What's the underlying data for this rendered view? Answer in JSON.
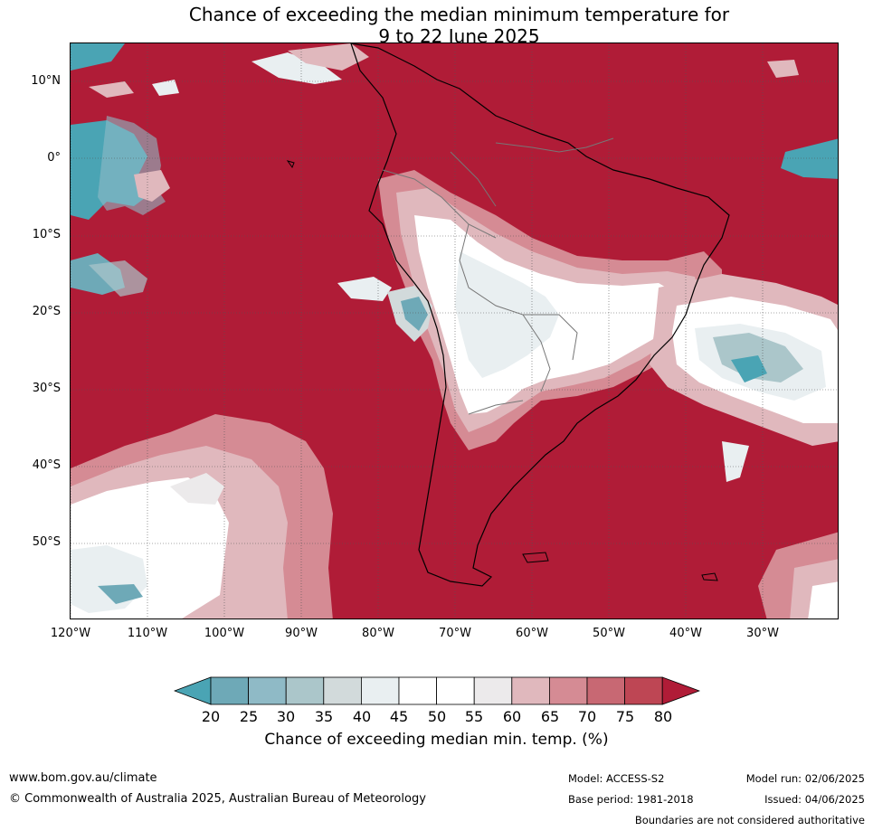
{
  "title_line1": "Chance of exceeding the median minimum temperature for",
  "title_line2": "9 to 22 June 2025",
  "lat_labels": [
    "10°N",
    "0°",
    "10°S",
    "20°S",
    "30°S",
    "40°S",
    "50°S"
  ],
  "lon_labels": [
    "120°W",
    "110°W",
    "100°W",
    "90°W",
    "80°W",
    "70°W",
    "60°W",
    "50°W",
    "40°W",
    "30°W"
  ],
  "colorbar": {
    "ticks": [
      "20",
      "25",
      "30",
      "35",
      "40",
      "45",
      "50",
      "55",
      "60",
      "65",
      "70",
      "75",
      "80"
    ],
    "colors": [
      "#4aa4b4",
      "#6ea9b7",
      "#8fbac6",
      "#abc6ca",
      "#d2dadb",
      "#e9eff1",
      "#ffffff",
      "#ffffff",
      "#eceaeb",
      "#e0b8bd",
      "#d58b94",
      "#c86873",
      "#be4654",
      "#b01c37"
    ],
    "label": "Chance of exceeding median min. temp. (%)"
  },
  "footer": {
    "url": "www.bom.gov.au/climate",
    "copyright": "© Commonwealth of Australia 2025, Australian Bureau of Meteorology",
    "model": "Model: ACCESS-S2",
    "base_period": "Base period: 1981-2018",
    "model_run": "Model run: 02/06/2025",
    "issued": "Issued: 04/06/2025",
    "disclaimer": "Boundaries are not considered authoritative"
  }
}
